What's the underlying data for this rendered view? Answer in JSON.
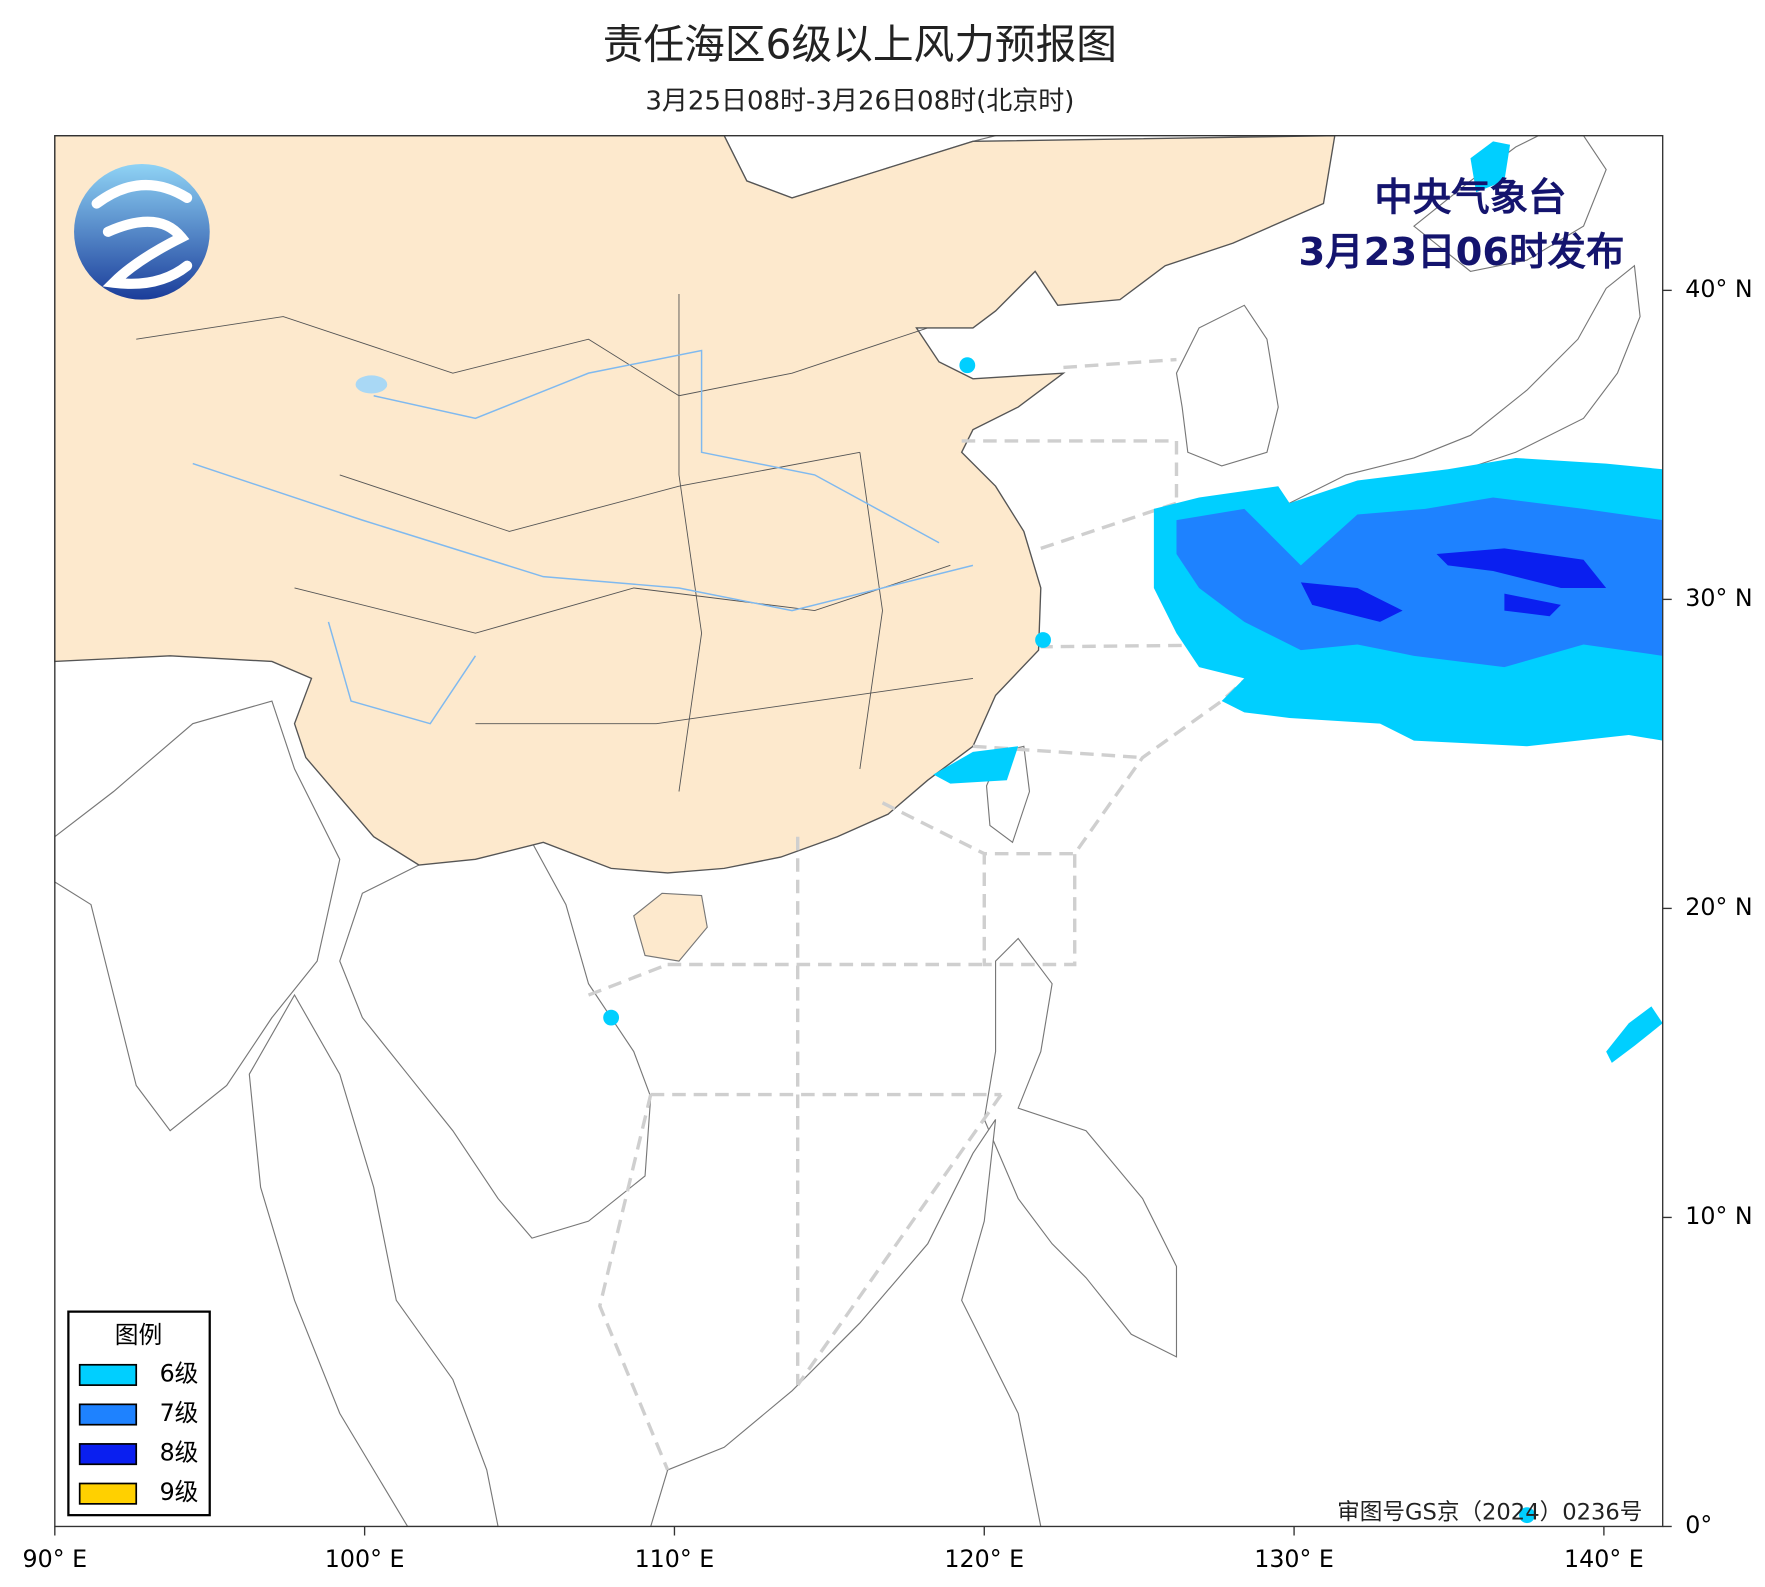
{
  "header": {
    "title": "责任海区6级以上风力预报图",
    "subtitle": "3月25日08时-3月26日08时(北京时)"
  },
  "issuer": {
    "agency": "中央气象台",
    "issued": "3月23日06时发布"
  },
  "legend": {
    "title": "图例",
    "items": [
      {
        "label": "6级",
        "color": "#00cfff"
      },
      {
        "label": "7级",
        "color": "#1e82ff"
      },
      {
        "label": "8级",
        "color": "#0a1ff0"
      },
      {
        "label": "9级",
        "color": "#ffd000"
      }
    ]
  },
  "map": {
    "lon_ticks": [
      {
        "value": 90,
        "label": "90° E"
      },
      {
        "value": 100,
        "label": "100° E"
      },
      {
        "value": 110,
        "label": "110° E"
      },
      {
        "value": 120,
        "label": "120° E"
      },
      {
        "value": 130,
        "label": "130° E"
      },
      {
        "value": 140,
        "label": "140° E"
      }
    ],
    "lat_ticks": [
      {
        "value": 0,
        "label": "0°"
      },
      {
        "value": 10,
        "label": "10° N"
      },
      {
        "value": 20,
        "label": "20° N"
      },
      {
        "value": 30,
        "label": "30° N"
      },
      {
        "value": 40,
        "label": "40° N"
      }
    ]
  },
  "approval": "审图号GS京（2024）0236号"
}
